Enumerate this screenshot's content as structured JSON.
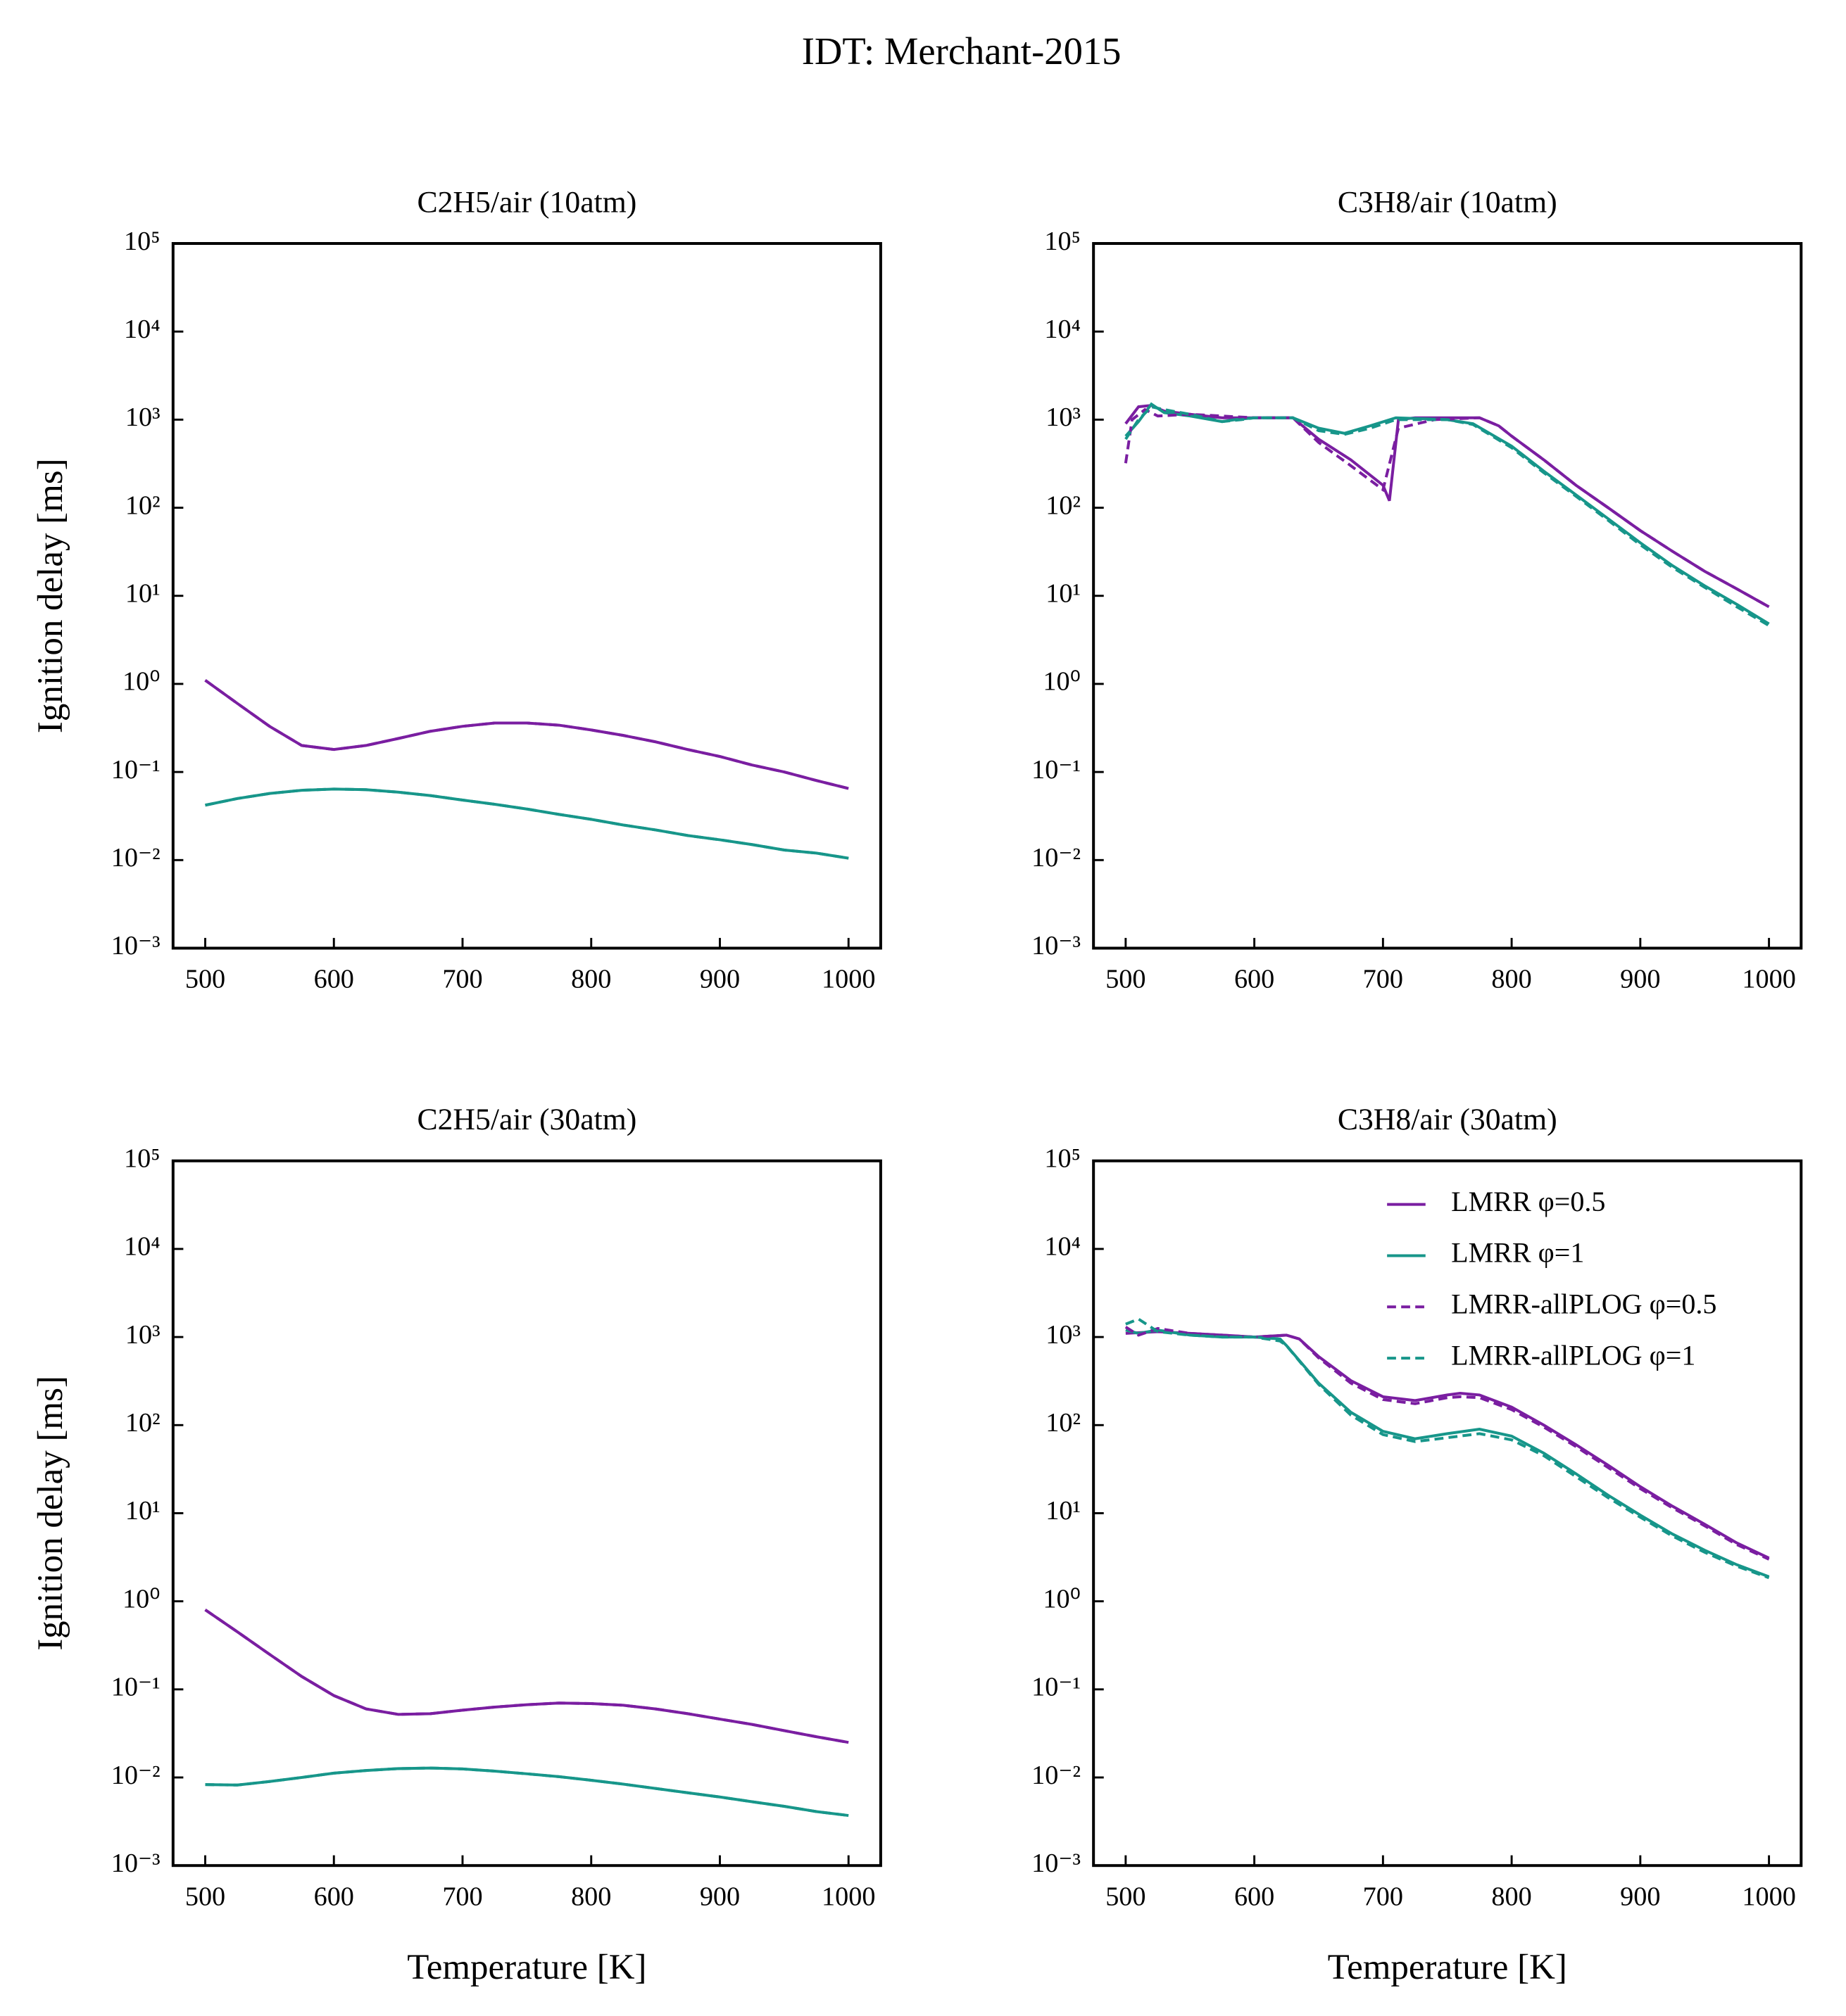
{
  "title": "IDT: Merchant-2015",
  "chart_data": [
    {
      "type": "line",
      "title": "C2H5/air (10atm)",
      "ylabel": "Ignition delay [ms]",
      "yscale": "log",
      "xlim": [
        475,
        1025
      ],
      "xticks": [
        500,
        600,
        700,
        800,
        900,
        1000
      ],
      "ylim": [
        0.001,
        100000
      ],
      "yticks": [
        {
          "value": 0.001,
          "label": "10⁻³"
        },
        {
          "value": 0.01,
          "label": "10⁻²"
        },
        {
          "value": 0.1,
          "label": "10⁻¹"
        },
        {
          "value": 1,
          "label": "10⁰"
        },
        {
          "value": 10,
          "label": "10¹"
        },
        {
          "value": 100,
          "label": "10²"
        },
        {
          "value": 1000,
          "label": "10³"
        },
        {
          "value": 10000,
          "label": "10⁴"
        },
        {
          "value": 100000,
          "label": "10⁵"
        }
      ],
      "series": [
        {
          "color": "#7a1ea1",
          "linestyle": "solid",
          "x": [
            500,
            525,
            550,
            575,
            600,
            625,
            650,
            675,
            700,
            725,
            750,
            775,
            800,
            825,
            850,
            875,
            900,
            925,
            950,
            975,
            1000
          ],
          "values": [
            1.1,
            0.6,
            0.33,
            0.2,
            0.18,
            0.2,
            0.24,
            0.29,
            0.33,
            0.36,
            0.36,
            0.34,
            0.3,
            0.26,
            0.22,
            0.18,
            0.15,
            0.12,
            0.1,
            0.08,
            0.065
          ]
        },
        {
          "color": "#17968a",
          "linestyle": "solid",
          "x": [
            500,
            525,
            550,
            575,
            600,
            625,
            650,
            675,
            700,
            725,
            750,
            775,
            800,
            825,
            850,
            875,
            900,
            925,
            950,
            975,
            1000
          ],
          "values": [
            0.042,
            0.05,
            0.057,
            0.062,
            0.064,
            0.063,
            0.059,
            0.054,
            0.048,
            0.043,
            0.038,
            0.033,
            0.029,
            0.025,
            0.022,
            0.019,
            0.017,
            0.015,
            0.013,
            0.012,
            0.0105
          ]
        },
        {
          "color": "#7a1ea1",
          "linestyle": "dashed",
          "x": [
            500,
            525,
            550,
            575,
            600,
            625,
            650,
            675,
            700,
            725,
            750,
            775,
            800,
            825,
            850,
            875,
            900,
            925,
            950,
            975,
            1000
          ],
          "values": [
            1.1,
            0.6,
            0.33,
            0.2,
            0.18,
            0.2,
            0.24,
            0.29,
            0.33,
            0.36,
            0.36,
            0.34,
            0.3,
            0.26,
            0.22,
            0.18,
            0.15,
            0.12,
            0.1,
            0.08,
            0.065
          ]
        },
        {
          "color": "#17968a",
          "linestyle": "dashed",
          "x": [
            500,
            525,
            550,
            575,
            600,
            625,
            650,
            675,
            700,
            725,
            750,
            775,
            800,
            825,
            850,
            875,
            900,
            925,
            950,
            975,
            1000
          ],
          "values": [
            0.042,
            0.05,
            0.057,
            0.062,
            0.064,
            0.063,
            0.059,
            0.054,
            0.048,
            0.043,
            0.038,
            0.033,
            0.029,
            0.025,
            0.022,
            0.019,
            0.017,
            0.015,
            0.013,
            0.012,
            0.0105
          ]
        }
      ]
    },
    {
      "type": "line",
      "title": "C3H8/air (10atm)",
      "yscale": "log",
      "xlim": [
        475,
        1025
      ],
      "xticks": [
        500,
        600,
        700,
        800,
        900,
        1000
      ],
      "ylim": [
        0.001,
        100000
      ],
      "yticks": [
        {
          "value": 0.001,
          "label": "10⁻³"
        },
        {
          "value": 0.01,
          "label": "10⁻²"
        },
        {
          "value": 0.1,
          "label": "10⁻¹"
        },
        {
          "value": 1,
          "label": "10⁰"
        },
        {
          "value": 10,
          "label": "10¹"
        },
        {
          "value": 100,
          "label": "10²"
        },
        {
          "value": 1000,
          "label": "10³"
        },
        {
          "value": 10000,
          "label": "10⁴"
        },
        {
          "value": 100000,
          "label": "10⁵"
        }
      ],
      "series": [
        {
          "color": "#7a1ea1",
          "linestyle": "solid",
          "x": [
            500,
            510,
            520,
            530,
            550,
            575,
            600,
            630,
            650,
            675,
            700,
            705,
            712,
            725,
            750,
            775,
            790,
            800,
            825,
            850,
            875,
            900,
            925,
            950,
            975,
            1000
          ],
          "values": [
            900,
            1400,
            1450,
            1250,
            1150,
            1050,
            1050,
            1050,
            600,
            350,
            180,
            120,
            1000,
            1050,
            1050,
            1050,
            850,
            650,
            350,
            180,
            100,
            55,
            32,
            19,
            12,
            7.5
          ]
        },
        {
          "color": "#17968a",
          "linestyle": "solid",
          "x": [
            500,
            510,
            520,
            530,
            550,
            575,
            585,
            600,
            630,
            650,
            670,
            690,
            710,
            750,
            770,
            800,
            825,
            850,
            875,
            900,
            925,
            950,
            975,
            1000
          ],
          "values": [
            650,
            950,
            1500,
            1200,
            1100,
            950,
            1000,
            1050,
            1050,
            800,
            700,
            850,
            1050,
            1000,
            900,
            500,
            260,
            140,
            75,
            40,
            22,
            13,
            8,
            4.8
          ]
        },
        {
          "color": "#7a1ea1",
          "linestyle": "dashed",
          "x": [
            500,
            505,
            515,
            525,
            550,
            600,
            630,
            650,
            675,
            700,
            712,
            740,
            775,
            790,
            800,
            825,
            850,
            875,
            900,
            925,
            950,
            975,
            1000
          ],
          "values": [
            320,
            1000,
            1300,
            1100,
            1150,
            1050,
            1050,
            550,
            300,
            160,
            800,
            1000,
            1050,
            850,
            650,
            350,
            180,
            100,
            55,
            32,
            19,
            12,
            7.5
          ]
        },
        {
          "color": "#17968a",
          "linestyle": "dashed",
          "x": [
            500,
            510,
            520,
            530,
            550,
            575,
            590,
            600,
            630,
            650,
            670,
            690,
            710,
            750,
            770,
            800,
            825,
            850,
            875,
            900,
            925,
            950,
            975,
            1000
          ],
          "values": [
            600,
            1000,
            1400,
            1300,
            1150,
            950,
            1000,
            1050,
            1050,
            750,
            680,
            800,
            1000,
            1000,
            880,
            480,
            250,
            135,
            72,
            38,
            21,
            12.5,
            7.5,
            4.6
          ]
        }
      ]
    },
    {
      "type": "line",
      "title": "C2H5/air (30atm)",
      "ylabel": "Ignition delay [ms]",
      "xlabel": "Temperature [K]",
      "yscale": "log",
      "xlim": [
        475,
        1025
      ],
      "xticks": [
        500,
        600,
        700,
        800,
        900,
        1000
      ],
      "ylim": [
        0.001,
        100000
      ],
      "yticks": [
        {
          "value": 0.001,
          "label": "10⁻³"
        },
        {
          "value": 0.01,
          "label": "10⁻²"
        },
        {
          "value": 0.1,
          "label": "10⁻¹"
        },
        {
          "value": 1,
          "label": "10⁰"
        },
        {
          "value": 10,
          "label": "10¹"
        },
        {
          "value": 100,
          "label": "10²"
        },
        {
          "value": 1000,
          "label": "10³"
        },
        {
          "value": 10000,
          "label": "10⁴"
        },
        {
          "value": 100000,
          "label": "10⁵"
        }
      ],
      "series": [
        {
          "color": "#7a1ea1",
          "linestyle": "solid",
          "x": [
            500,
            525,
            550,
            575,
            600,
            625,
            650,
            675,
            700,
            725,
            750,
            775,
            800,
            825,
            850,
            875,
            900,
            925,
            950,
            975,
            1000
          ],
          "values": [
            0.8,
            0.45,
            0.25,
            0.14,
            0.085,
            0.06,
            0.052,
            0.053,
            0.058,
            0.063,
            0.067,
            0.07,
            0.069,
            0.066,
            0.06,
            0.053,
            0.046,
            0.04,
            0.034,
            0.029,
            0.025
          ]
        },
        {
          "color": "#17968a",
          "linestyle": "solid",
          "x": [
            500,
            525,
            550,
            575,
            600,
            625,
            650,
            675,
            700,
            725,
            750,
            775,
            800,
            825,
            850,
            875,
            900,
            925,
            950,
            975,
            1000
          ],
          "values": [
            0.0083,
            0.0082,
            0.009,
            0.01,
            0.0112,
            0.012,
            0.0126,
            0.0128,
            0.0125,
            0.0118,
            0.011,
            0.0102,
            0.0093,
            0.0084,
            0.0075,
            0.0067,
            0.006,
            0.0053,
            0.0047,
            0.0041,
            0.0037
          ]
        },
        {
          "color": "#7a1ea1",
          "linestyle": "dashed",
          "x": [
            500,
            525,
            550,
            575,
            600,
            625,
            650,
            675,
            700,
            725,
            750,
            775,
            800,
            825,
            850,
            875,
            900,
            925,
            950,
            975,
            1000
          ],
          "values": [
            0.8,
            0.45,
            0.25,
            0.14,
            0.085,
            0.06,
            0.052,
            0.053,
            0.058,
            0.063,
            0.067,
            0.07,
            0.069,
            0.066,
            0.06,
            0.053,
            0.046,
            0.04,
            0.034,
            0.029,
            0.025
          ]
        },
        {
          "color": "#17968a",
          "linestyle": "dashed",
          "x": [
            500,
            525,
            550,
            575,
            600,
            625,
            650,
            675,
            700,
            725,
            750,
            775,
            800,
            825,
            850,
            875,
            900,
            925,
            950,
            975,
            1000
          ],
          "values": [
            0.0083,
            0.0082,
            0.009,
            0.01,
            0.0112,
            0.012,
            0.0126,
            0.0128,
            0.0125,
            0.0118,
            0.011,
            0.0102,
            0.0093,
            0.0084,
            0.0075,
            0.0067,
            0.006,
            0.0053,
            0.0047,
            0.0041,
            0.0037
          ]
        }
      ]
    },
    {
      "type": "line",
      "title": "C3H8/air (30atm)",
      "xlabel": "Temperature [K]",
      "yscale": "log",
      "legend": "upper right",
      "xlim": [
        475,
        1025
      ],
      "xticks": [
        500,
        600,
        700,
        800,
        900,
        1000
      ],
      "ylim": [
        0.001,
        100000
      ],
      "yticks": [
        {
          "value": 0.001,
          "label": "10⁻³"
        },
        {
          "value": 0.01,
          "label": "10⁻²"
        },
        {
          "value": 0.1,
          "label": "10⁻¹"
        },
        {
          "value": 1,
          "label": "10⁰"
        },
        {
          "value": 10,
          "label": "10¹"
        },
        {
          "value": 100,
          "label": "10²"
        },
        {
          "value": 1000,
          "label": "10³"
        },
        {
          "value": 10000,
          "label": "10⁴"
        },
        {
          "value": 100000,
          "label": "10⁵"
        }
      ],
      "series": [
        {
          "name": "LMRR φ=0.5",
          "color": "#7a1ea1",
          "linestyle": "solid",
          "x": [
            500,
            525,
            550,
            575,
            600,
            625,
            635,
            650,
            675,
            700,
            725,
            750,
            760,
            775,
            800,
            825,
            850,
            875,
            900,
            925,
            950,
            975,
            1000
          ],
          "values": [
            1100,
            1150,
            1100,
            1050,
            1000,
            1050,
            950,
            600,
            320,
            210,
            190,
            220,
            230,
            220,
            160,
            100,
            60,
            35,
            20,
            12,
            7.5,
            4.6,
            3.1
          ]
        },
        {
          "name": "LMRR φ=1",
          "color": "#17968a",
          "linestyle": "solid",
          "x": [
            500,
            510,
            525,
            550,
            575,
            600,
            620,
            625,
            650,
            675,
            700,
            725,
            750,
            775,
            800,
            825,
            850,
            875,
            900,
            925,
            950,
            975,
            1000
          ],
          "values": [
            1200,
            1100,
            1200,
            1050,
            1000,
            1000,
            950,
            800,
            300,
            140,
            85,
            70,
            80,
            90,
            75,
            48,
            28,
            16,
            9.5,
            5.8,
            3.8,
            2.6,
            1.9
          ]
        },
        {
          "name": "LMRR-allPLOG φ=0.5",
          "color": "#7a1ea1",
          "linestyle": "dashed",
          "x": [
            500,
            510,
            525,
            550,
            575,
            600,
            625,
            635,
            650,
            675,
            700,
            725,
            750,
            760,
            775,
            800,
            825,
            850,
            875,
            900,
            925,
            950,
            975,
            1000
          ],
          "values": [
            1300,
            1050,
            1250,
            1100,
            1050,
            1000,
            1050,
            950,
            580,
            300,
            195,
            175,
            205,
            210,
            205,
            150,
            95,
            57,
            33,
            19,
            11.5,
            7.2,
            4.4,
            3.0
          ]
        },
        {
          "name": "LMRR-allPLOG φ=1",
          "color": "#17968a",
          "linestyle": "dashed",
          "x": [
            500,
            510,
            525,
            550,
            575,
            600,
            620,
            625,
            650,
            675,
            700,
            725,
            750,
            775,
            800,
            825,
            850,
            875,
            900,
            925,
            950,
            975,
            1000
          ],
          "values": [
            1400,
            1600,
            1150,
            1050,
            1000,
            1000,
            900,
            800,
            290,
            130,
            78,
            65,
            72,
            80,
            68,
            45,
            26,
            15,
            9,
            5.5,
            3.6,
            2.5,
            1.85
          ]
        }
      ]
    }
  ]
}
